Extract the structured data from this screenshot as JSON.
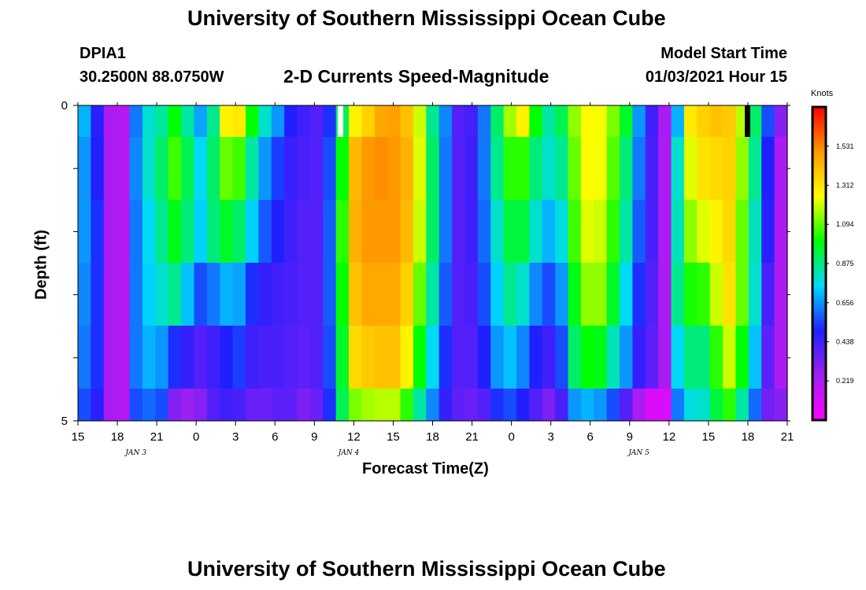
{
  "page": {
    "title_top": "University of Southern Mississippi Ocean Cube",
    "title_bottom": "University of Southern Mississippi Ocean Cube",
    "station_id": "DPIA1",
    "station_coords": "30.2500N 88.0750W",
    "chart_title": "2-D Currents Speed-Magnitude",
    "model_start_label": "Model Start Time",
    "model_start_value": "01/03/2021 Hour 15"
  },
  "chart_data": {
    "type": "heatmap",
    "title": "2-D Currents Speed-Magnitude",
    "xlabel": "Forecast Time(Z)",
    "ylabel": "Depth (ft)",
    "colorbar_label": "Knots",
    "x_hours": [
      0,
      1,
      2,
      3,
      4,
      5,
      6,
      7,
      8,
      9,
      10,
      11,
      12,
      13,
      14,
      15,
      16,
      17,
      18,
      19,
      20,
      21,
      22,
      23,
      24,
      25,
      26,
      27,
      28,
      29,
      30,
      31,
      32,
      33,
      34,
      35,
      36,
      37,
      38,
      39,
      40,
      41,
      42,
      43,
      44,
      45,
      46,
      47,
      48,
      49,
      50,
      51,
      52,
      53,
      54
    ],
    "x_tick_labels": [
      "15",
      "18",
      "21",
      "0",
      "3",
      "6",
      "9",
      "12",
      "15",
      "18",
      "21",
      "0",
      "3",
      "6",
      "9",
      "12",
      "15",
      "18",
      "21"
    ],
    "day_labels": [
      {
        "label": "JAN 3",
        "hour": 4.5
      },
      {
        "label": "JAN 4",
        "hour": 21
      },
      {
        "label": "JAN 5",
        "hour": 43.5
      }
    ],
    "y_tick_labels": [
      "0",
      "5"
    ],
    "ylim": [
      0,
      5
    ],
    "color_scale": {
      "min": 0.0,
      "max": 1.75,
      "ticks": [
        "1.531",
        "1.312",
        "1.094",
        "0.875",
        "0.656",
        "0.438",
        "0.219"
      ],
      "tick_values": [
        1.531,
        1.312,
        1.094,
        0.875,
        0.656,
        0.438,
        0.219
      ],
      "colors": [
        "#ff00ff",
        "#a020f0",
        "#2020ff",
        "#00d8ff",
        "#00ff00",
        "#ffff00",
        "#ff9900",
        "#ff0000"
      ]
    },
    "depth_levels": [
      "0-0.5",
      "0.5-1.5",
      "1.5-2.5",
      "2.5-3.5",
      "3.5-4.5",
      "4.5-5"
    ],
    "speed_knots": [
      [
        0.7,
        0.48,
        0.22,
        0.2,
        0.62,
        0.8,
        0.85,
        1.0,
        0.84,
        0.68,
        0.86,
        1.28,
        1.3,
        1.0,
        0.8,
        0.66,
        0.5,
        0.44,
        0.4,
        0.52,
        0.92,
        1.28,
        1.36,
        1.46,
        1.48,
        1.4,
        1.2,
        0.86,
        0.64,
        0.4,
        0.43,
        0.62,
        0.9,
        1.16,
        1.28,
        1.0,
        0.84,
        0.92,
        1.14,
        1.26,
        1.24,
        1.12,
        0.96,
        0.66,
        0.44,
        0.22,
        0.7,
        1.3,
        1.36,
        1.4,
        1.38,
        1.18,
        0.9,
        0.56,
        0.3
      ],
      [
        0.66,
        0.5,
        0.22,
        0.2,
        0.64,
        0.8,
        0.9,
        1.06,
        0.92,
        0.76,
        0.9,
        1.1,
        1.06,
        0.84,
        0.66,
        0.54,
        0.45,
        0.42,
        0.4,
        0.56,
        1.0,
        1.42,
        1.5,
        1.52,
        1.5,
        1.44,
        1.22,
        0.9,
        0.62,
        0.4,
        0.44,
        0.62,
        0.86,
        1.04,
        1.04,
        0.88,
        0.8,
        0.86,
        1.1,
        1.26,
        1.24,
        1.08,
        0.88,
        0.62,
        0.42,
        0.22,
        0.8,
        1.22,
        1.32,
        1.34,
        1.36,
        1.14,
        0.86,
        0.5,
        0.22
      ],
      [
        0.66,
        0.52,
        0.22,
        0.2,
        0.62,
        0.76,
        0.86,
        0.98,
        0.88,
        0.74,
        0.88,
        0.96,
        0.9,
        0.74,
        0.58,
        0.5,
        0.44,
        0.4,
        0.4,
        0.58,
        1.04,
        1.44,
        1.5,
        1.5,
        1.5,
        1.42,
        1.2,
        0.9,
        0.62,
        0.4,
        0.44,
        0.6,
        0.8,
        0.94,
        0.94,
        0.8,
        0.7,
        0.78,
        1.06,
        1.22,
        1.2,
        1.04,
        0.84,
        0.58,
        0.42,
        0.22,
        0.82,
        1.14,
        1.22,
        1.28,
        1.34,
        1.1,
        0.82,
        0.48,
        0.22
      ],
      [
        0.64,
        0.52,
        0.22,
        0.2,
        0.62,
        0.74,
        0.8,
        0.86,
        0.72,
        0.56,
        0.62,
        0.7,
        0.68,
        0.52,
        0.46,
        0.44,
        0.42,
        0.4,
        0.4,
        0.58,
        1.0,
        1.4,
        1.46,
        1.46,
        1.46,
        1.36,
        1.1,
        0.84,
        0.58,
        0.4,
        0.42,
        0.56,
        0.74,
        0.86,
        0.8,
        0.64,
        0.56,
        0.66,
        0.98,
        1.14,
        1.14,
        0.96,
        0.76,
        0.52,
        0.4,
        0.22,
        0.86,
        1.02,
        1.04,
        1.2,
        1.32,
        1.1,
        0.8,
        0.42,
        0.22
      ],
      [
        0.62,
        0.52,
        0.22,
        0.2,
        0.62,
        0.7,
        0.66,
        0.52,
        0.46,
        0.4,
        0.44,
        0.5,
        0.54,
        0.44,
        0.42,
        0.42,
        0.4,
        0.38,
        0.4,
        0.56,
        0.96,
        1.34,
        1.38,
        1.4,
        1.4,
        1.28,
        1.0,
        0.76,
        0.52,
        0.4,
        0.4,
        0.5,
        0.66,
        0.72,
        0.64,
        0.5,
        0.44,
        0.56,
        0.9,
        1.0,
        0.98,
        0.82,
        0.66,
        0.46,
        0.38,
        0.22,
        0.76,
        0.88,
        0.88,
        1.04,
        1.2,
        1.0,
        0.72,
        0.38,
        0.22
      ],
      [
        0.56,
        0.48,
        0.22,
        0.2,
        0.56,
        0.6,
        0.56,
        0.3,
        0.26,
        0.3,
        0.4,
        0.44,
        0.42,
        0.36,
        0.36,
        0.38,
        0.38,
        0.32,
        0.36,
        0.52,
        0.92,
        1.12,
        1.16,
        1.18,
        1.18,
        1.04,
        0.84,
        0.64,
        0.46,
        0.38,
        0.36,
        0.4,
        0.52,
        0.56,
        0.5,
        0.4,
        0.32,
        0.42,
        0.66,
        0.7,
        0.66,
        0.56,
        0.4,
        0.22,
        0.1,
        0.1,
        0.62,
        0.78,
        0.8,
        0.94,
        1.04,
        0.84,
        0.6,
        0.34,
        0.3
      ]
    ]
  }
}
